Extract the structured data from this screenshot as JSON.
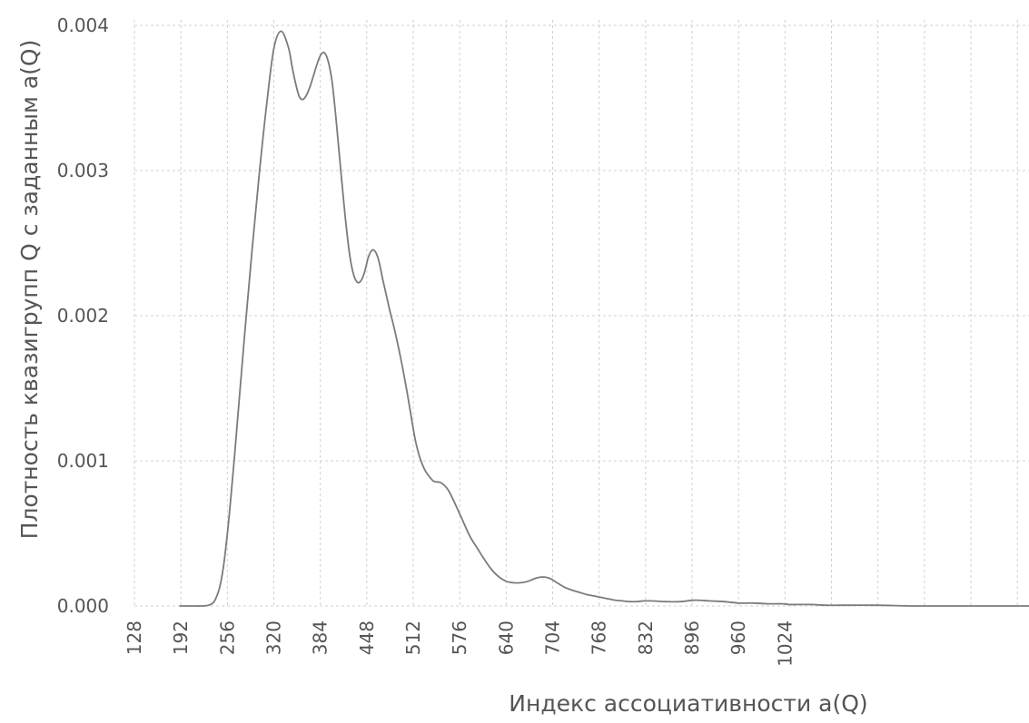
{
  "chart_data": {
    "type": "line",
    "title": "",
    "xlabel": "Индекс ассоциативности a(Q)",
    "ylabel": "Плотность квазигрупп Q с заданным a(Q)",
    "xlim": [
      128,
      1360
    ],
    "ylim": [
      0,
      0.004
    ],
    "grid": true,
    "legend": "none",
    "x_ticks": [
      "128",
      "192",
      "256",
      "320",
      "384",
      "448",
      "512",
      "576",
      "640",
      "704",
      "768",
      "832",
      "896",
      "960",
      "1024"
    ],
    "x_tick_values": [
      128,
      192,
      256,
      320,
      384,
      448,
      512,
      576,
      640,
      704,
      768,
      832,
      896,
      960,
      1024
    ],
    "x_grid_extra": [
      1088,
      1152,
      1216,
      1280,
      1344
    ],
    "y_ticks": [
      "0.000",
      "0.001",
      "0.002",
      "0.003",
      "0.004"
    ],
    "y_tick_values": [
      0,
      0.001,
      0.002,
      0.003,
      0.004
    ],
    "series": [
      {
        "color": "#7b7b7b",
        "x": [
          190,
          200,
          210,
          220,
          230,
          236,
          240,
          245,
          250,
          255,
          260,
          265,
          270,
          280,
          290,
          300,
          310,
          320,
          330,
          340,
          345,
          350,
          355,
          360,
          365,
          370,
          375,
          380,
          385,
          390,
          395,
          400,
          405,
          410,
          415,
          420,
          425,
          430,
          435,
          440,
          445,
          450,
          455,
          460,
          465,
          470,
          475,
          480,
          485,
          490,
          495,
          500,
          505,
          510,
          515,
          520,
          525,
          530,
          540,
          550,
          560,
          570,
          580,
          590,
          600,
          610,
          620,
          630,
          640,
          650,
          660,
          670,
          680,
          690,
          700,
          710,
          720,
          730,
          740,
          750,
          760,
          770,
          780,
          790,
          800,
          810,
          820,
          830,
          840,
          860,
          880,
          900,
          920,
          940,
          960,
          980,
          1000,
          1020,
          1030,
          1040,
          1060,
          1080,
          1100,
          1150,
          1200,
          1250,
          1300,
          1360
        ],
        "y": [
          0.0,
          0.0,
          0.0,
          0.0,
          5e-06,
          2e-05,
          5e-05,
          0.00012,
          0.00025,
          0.00045,
          0.0007,
          0.00098,
          0.00128,
          0.00188,
          0.00245,
          0.00298,
          0.00345,
          0.00384,
          0.00396,
          0.00385,
          0.00372,
          0.0036,
          0.00351,
          0.00349,
          0.00352,
          0.00358,
          0.00366,
          0.00374,
          0.0038,
          0.00381,
          0.00375,
          0.00362,
          0.00339,
          0.00312,
          0.00285,
          0.0026,
          0.0024,
          0.00228,
          0.00223,
          0.00224,
          0.0023,
          0.0024,
          0.00245,
          0.00244,
          0.00237,
          0.00225,
          0.00214,
          0.00203,
          0.00193,
          0.00182,
          0.0017,
          0.00157,
          0.00143,
          0.00128,
          0.00114,
          0.00104,
          0.00097,
          0.00092,
          0.00086,
          0.00085,
          0.0008,
          0.0007,
          0.00059,
          0.00048,
          0.0004,
          0.00032,
          0.00025,
          0.0002,
          0.00017,
          0.00016,
          0.00016,
          0.00017,
          0.00019,
          0.0002,
          0.00019,
          0.00016,
          0.00013,
          0.00011,
          9.5e-05,
          8e-05,
          7e-05,
          6e-05,
          5e-05,
          4e-05,
          3.5e-05,
          3e-05,
          3e-05,
          3.5e-05,
          3.5e-05,
          3e-05,
          3e-05,
          4e-05,
          3.5e-05,
          3e-05,
          2e-05,
          2e-05,
          1.5e-05,
          1.5e-05,
          1e-05,
          1e-05,
          1e-05,
          5e-06,
          5e-06,
          5e-06,
          0.0,
          0.0,
          0.0,
          0.0
        ]
      }
    ]
  }
}
